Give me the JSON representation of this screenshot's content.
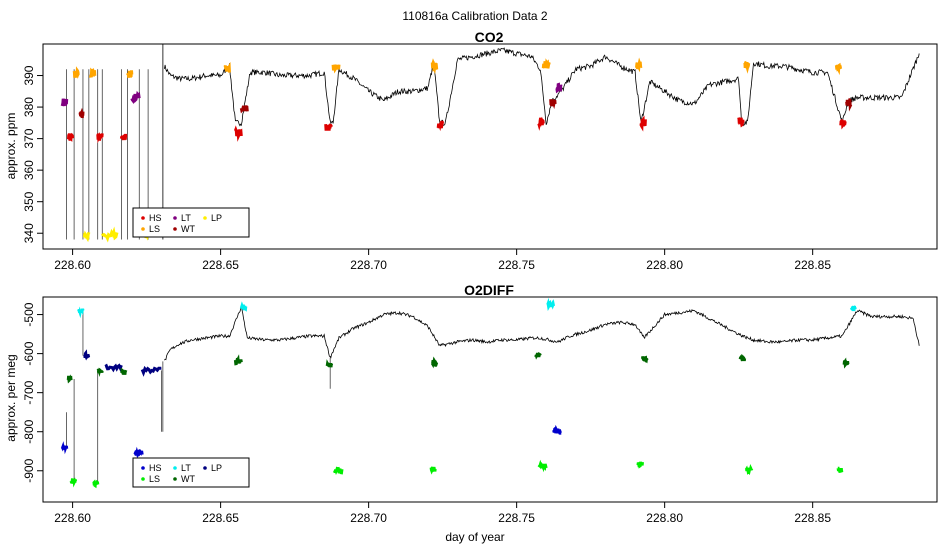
{
  "figure": {
    "title": "110816a   Calibration Data 2",
    "xlabel": "day of year"
  },
  "colors": {
    "HS": "#dd0000",
    "LS": "#ffa500",
    "LT": "#800080",
    "WT": "#a00000",
    "LP": "#ffee00",
    "trace": "#000000"
  },
  "chart_data": [
    {
      "type": "line",
      "title": "CO2",
      "xlabel": "",
      "ylabel": "approx. ppm",
      "xlim": [
        228.59,
        228.892
      ],
      "ylim": [
        335,
        400
      ],
      "xticks": [
        "228.60",
        "228.65",
        "228.70",
        "228.75",
        "228.80",
        "228.85"
      ],
      "xtick_values": [
        228.6,
        228.65,
        228.7,
        228.75,
        228.8,
        228.85
      ],
      "yticks": [
        "340",
        "350",
        "360",
        "370",
        "380",
        "390"
      ],
      "ytick_values": [
        340,
        350,
        360,
        370,
        380,
        390
      ],
      "legend": {
        "placement": "bottom-left",
        "entries": [
          "HS",
          "LT",
          "LP",
          "LS",
          "WT"
        ]
      },
      "trace": {
        "x": [
          228.631,
          228.633,
          228.636,
          228.64,
          228.645,
          228.65,
          228.653,
          228.655,
          228.657,
          228.66,
          228.665,
          228.67,
          228.675,
          228.68,
          228.685,
          228.687,
          228.688,
          228.69,
          228.695,
          228.7,
          228.705,
          228.71,
          228.715,
          228.72,
          228.722,
          228.724,
          228.726,
          228.73,
          228.735,
          228.74,
          228.745,
          228.75,
          228.755,
          228.758,
          228.76,
          228.762,
          228.765,
          228.77,
          228.775,
          228.78,
          228.785,
          228.79,
          228.792,
          228.795,
          228.8,
          228.805,
          228.81,
          228.815,
          228.82,
          228.825,
          228.826,
          228.828,
          228.83,
          228.835,
          228.84,
          228.845,
          228.85,
          228.855,
          228.86,
          228.862,
          228.865,
          228.87,
          228.875,
          228.88,
          228.883,
          228.886
        ],
        "y": [
          393,
          390,
          389,
          389,
          390,
          390,
          393,
          375,
          375,
          391,
          391,
          390,
          390,
          390,
          391,
          375,
          375,
          392,
          389,
          385,
          382,
          385,
          385,
          386,
          394,
          375,
          375,
          395,
          396,
          397,
          398,
          397,
          396,
          392,
          375,
          382,
          385,
          392,
          393,
          396,
          393,
          391,
          375,
          388,
          385,
          382,
          381,
          387,
          388,
          389,
          375,
          375,
          394,
          393,
          393,
          392,
          391,
          391,
          375,
          382,
          383,
          383,
          383,
          383,
          390,
          397
        ]
      },
      "segments": [
        {
          "type": "LT",
          "x": [
            228.5965,
            228.598
          ],
          "y": 381.5
        },
        {
          "type": "HS",
          "x": [
            228.5985,
            228.6
          ],
          "y": 370.5
        },
        {
          "type": "LS",
          "x": [
            228.6005,
            228.602
          ],
          "y": 390.5
        },
        {
          "type": "WT",
          "x": [
            228.6025,
            228.6035
          ],
          "y": 377.5
        },
        {
          "type": "LP",
          "x": [
            228.604,
            228.6055
          ],
          "y": 339.5
        },
        {
          "type": "LS",
          "x": [
            228.606,
            228.6075
          ],
          "y": 390.5
        },
        {
          "type": "HS",
          "x": [
            228.6085,
            228.61
          ],
          "y": 370.5
        },
        {
          "type": "LP",
          "x": [
            228.61,
            228.615
          ],
          "y": 339.5
        },
        {
          "type": "HS",
          "x": [
            228.6165,
            228.618
          ],
          "y": 370.5
        },
        {
          "type": "LS",
          "x": [
            228.6185,
            228.62
          ],
          "y": 390.5
        },
        {
          "type": "LT",
          "x": [
            228.62,
            228.6225
          ],
          "y": 383
        },
        {
          "type": "LP",
          "x": [
            228.6235,
            228.6255
          ],
          "y": 339.5
        },
        {
          "type": "LS",
          "x": [
            228.6515,
            228.653
          ],
          "y": 392
        },
        {
          "type": "HS",
          "x": [
            228.655,
            228.657
          ],
          "y": 372
        },
        {
          "type": "WT",
          "x": [
            228.657,
            228.659
          ],
          "y": 379.5
        },
        {
          "type": "HS",
          "x": [
            228.6855,
            228.6875
          ],
          "y": 373.5
        },
        {
          "type": "LS",
          "x": [
            228.688,
            228.69
          ],
          "y": 392.5
        },
        {
          "type": "LS",
          "x": [
            228.7215,
            228.723
          ],
          "y": 393
        },
        {
          "type": "HS",
          "x": [
            228.7235,
            228.725
          ],
          "y": 374.5
        },
        {
          "type": "HS",
          "x": [
            228.7575,
            228.759
          ],
          "y": 375
        },
        {
          "type": "LS",
          "x": [
            228.759,
            228.761
          ],
          "y": 393.5
        },
        {
          "type": "WT",
          "x": [
            228.7615,
            228.763
          ],
          "y": 381.5
        },
        {
          "type": "LT",
          "x": [
            228.7635,
            228.765
          ],
          "y": 386
        },
        {
          "type": "LS",
          "x": [
            228.7905,
            228.792
          ],
          "y": 393
        },
        {
          "type": "HS",
          "x": [
            228.792,
            228.7935
          ],
          "y": 375
        },
        {
          "type": "HS",
          "x": [
            228.825,
            228.8265
          ],
          "y": 375.5
        },
        {
          "type": "LS",
          "x": [
            228.827,
            228.8285
          ],
          "y": 393.5
        },
        {
          "type": "LS",
          "x": [
            228.858,
            228.8595
          ],
          "y": 393
        },
        {
          "type": "HS",
          "x": [
            228.8595,
            228.861
          ],
          "y": 375
        },
        {
          "type": "WT",
          "x": [
            228.8615,
            228.863
          ],
          "y": 381.5
        }
      ]
    },
    {
      "type": "line",
      "title": "O2DIFF",
      "xlabel": "day of year",
      "ylabel": "approx. per meg",
      "xlim": [
        228.59,
        228.892
      ],
      "ylim": [
        -980,
        -455
      ],
      "xticks": [
        "228.60",
        "228.65",
        "228.70",
        "228.75",
        "228.80",
        "228.85"
      ],
      "xtick_values": [
        228.6,
        228.65,
        228.7,
        228.75,
        228.8,
        228.85
      ],
      "yticks": [
        "-900",
        "-800",
        "-700",
        "-600",
        "-500"
      ],
      "ytick_values": [
        -900,
        -800,
        -700,
        -600,
        -500
      ],
      "legend": {
        "placement": "bottom-left",
        "entries": [
          "HS",
          "LT",
          "LP",
          "LS",
          "WT"
        ]
      },
      "colors_o2": {
        "HS": "#0000cc",
        "LS": "#00ee00",
        "LT": "#00eeee",
        "WT": "#006600",
        "LP": "#000080"
      },
      "trace": {
        "x": [
          228.631,
          228.633,
          228.636,
          228.64,
          228.645,
          228.65,
          228.653,
          228.657,
          228.659,
          228.665,
          228.67,
          228.675,
          228.68,
          228.685,
          228.687,
          228.69,
          228.695,
          228.7,
          228.705,
          228.71,
          228.715,
          228.72,
          228.724,
          228.73,
          228.735,
          228.74,
          228.745,
          228.75,
          228.755,
          228.758,
          228.764,
          228.768,
          228.775,
          228.78,
          228.785,
          228.79,
          228.793,
          228.8,
          228.805,
          228.81,
          228.815,
          228.82,
          228.825,
          228.828,
          228.83,
          228.835,
          228.84,
          228.845,
          228.85,
          228.855,
          228.86,
          228.865,
          228.87,
          228.875,
          228.88,
          228.884,
          228.886
        ],
        "y": [
          -620,
          -590,
          -575,
          -565,
          -560,
          -555,
          -555,
          -480,
          -560,
          -565,
          -565,
          -560,
          -555,
          -555,
          -610,
          -560,
          -535,
          -520,
          -500,
          -495,
          -505,
          -530,
          -580,
          -570,
          -565,
          -570,
          -565,
          -565,
          -560,
          -560,
          -570,
          -555,
          -540,
          -525,
          -520,
          -525,
          -560,
          -500,
          -495,
          -490,
          -510,
          -530,
          -550,
          -560,
          -565,
          -570,
          -570,
          -565,
          -565,
          -560,
          -555,
          -490,
          -505,
          -505,
          -505,
          -510,
          -580
        ]
      },
      "segments": [
        {
          "type": "HS",
          "x": [
            228.5965,
            228.598
          ],
          "y": -842
        },
        {
          "type": "WT",
          "x": [
            228.5985,
            228.5995
          ],
          "y": -663
        },
        {
          "type": "LS",
          "x": [
            228.5995,
            228.601
          ],
          "y": -925
        },
        {
          "type": "LT",
          "x": [
            228.602,
            228.6035
          ],
          "y": -490
        },
        {
          "type": "LP",
          "x": [
            228.604,
            228.6055
          ],
          "y": -605
        },
        {
          "type": "LS",
          "x": [
            228.607,
            228.6085
          ],
          "y": -933
        },
        {
          "type": "WT",
          "x": [
            228.6085,
            228.61
          ],
          "y": -645
        },
        {
          "type": "LP",
          "x": [
            228.611,
            228.6165
          ],
          "y": -635
        },
        {
          "type": "WT",
          "x": [
            228.6165,
            228.618
          ],
          "y": -648
        },
        {
          "type": "HS",
          "x": [
            228.621,
            228.6235
          ],
          "y": -854
        },
        {
          "type": "LP",
          "x": [
            228.6235,
            228.63
          ],
          "y": -643
        },
        {
          "type": "WT",
          "x": [
            228.655,
            228.657
          ],
          "y": -620
        },
        {
          "type": "LT",
          "x": [
            228.657,
            228.6585
          ],
          "y": -480
        },
        {
          "type": "WT",
          "x": [
            228.686,
            228.6875
          ],
          "y": -630
        },
        {
          "type": "LS",
          "x": [
            228.6885,
            228.691
          ],
          "y": -900
        },
        {
          "type": "WT",
          "x": [
            228.7215,
            228.723
          ],
          "y": -622
        },
        {
          "type": "LS",
          "x": [
            228.721,
            228.7225
          ],
          "y": -896
        },
        {
          "type": "WT",
          "x": [
            228.7565,
            228.758
          ],
          "y": -604
        },
        {
          "type": "LS",
          "x": [
            228.7575,
            228.76
          ],
          "y": -888
        },
        {
          "type": "LT",
          "x": [
            228.7605,
            228.7625
          ],
          "y": -475
        },
        {
          "type": "HS",
          "x": [
            228.7625,
            228.765
          ],
          "y": -798
        },
        {
          "type": "LS",
          "x": [
            228.791,
            228.7925
          ],
          "y": -883
        },
        {
          "type": "WT",
          "x": [
            228.7925,
            228.794
          ],
          "y": -612
        },
        {
          "type": "WT",
          "x": [
            228.8255,
            228.827
          ],
          "y": -613
        },
        {
          "type": "LS",
          "x": [
            228.8275,
            228.8295
          ],
          "y": -897
        },
        {
          "type": "LS",
          "x": [
            228.8585,
            228.86
          ],
          "y": -899
        },
        {
          "type": "WT",
          "x": [
            228.8605,
            228.862
          ],
          "y": -623
        },
        {
          "type": "LT",
          "x": [
            228.863,
            228.8645
          ],
          "y": -487
        }
      ]
    }
  ]
}
